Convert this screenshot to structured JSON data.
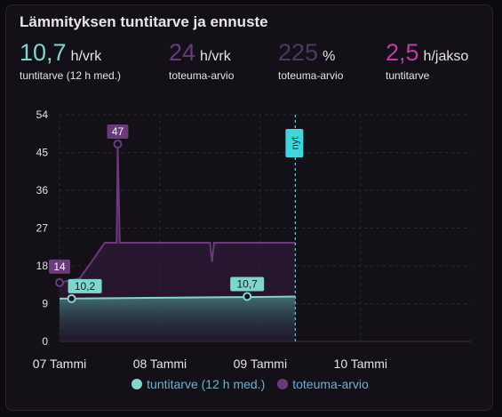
{
  "card": {
    "title": "Lämmityksen tuntitarve ja ennuste"
  },
  "stats": [
    {
      "value": "10,7",
      "unit": "h/vrk",
      "label": "tuntitarve (12 h med.)",
      "color": "#7fd6cc"
    },
    {
      "value": "24",
      "unit": "h/vrk",
      "label": "toteuma-arvio",
      "color": "#6a3a7a"
    },
    {
      "value": "225",
      "unit": "%",
      "label": "toteuma-arvio",
      "color": "#4a3a62"
    },
    {
      "value": "2,5",
      "unit": "h/jakso",
      "label": "tuntitarve",
      "color": "#c23aa8"
    }
  ],
  "chart_data": {
    "type": "line",
    "x_ticks": [
      "07 Tammi",
      "08 Tammi",
      "09 Tammi",
      "10 Tammi"
    ],
    "y_ticks": [
      "0",
      "9",
      "18",
      "27",
      "36",
      "45",
      "54"
    ],
    "ylim": [
      0,
      54
    ],
    "xlim_days": [
      0,
      4.1
    ],
    "now_label": "nyt",
    "now_x": 2.35,
    "series": [
      {
        "name": "tuntitarve (12 h med.)",
        "color": "#7fd6cc",
        "points": [
          [
            0,
            10.2
          ],
          [
            0.5,
            10.3
          ],
          [
            1.0,
            10.4
          ],
          [
            1.5,
            10.5
          ],
          [
            2.0,
            10.6
          ],
          [
            2.35,
            10.7
          ]
        ]
      },
      {
        "name": "toteuma-arvio",
        "color": "#6a3a7a",
        "points": [
          [
            0,
            14
          ],
          [
            0.2,
            15
          ],
          [
            0.35,
            20
          ],
          [
            0.45,
            23.5
          ],
          [
            0.57,
            23.5
          ],
          [
            0.58,
            47
          ],
          [
            0.6,
            23.5
          ],
          [
            1.5,
            23.5
          ],
          [
            1.52,
            19
          ],
          [
            1.54,
            23.5
          ],
          [
            2.35,
            23.5
          ]
        ]
      }
    ],
    "annotations": [
      {
        "label": "47",
        "x": 0.58,
        "y": 47,
        "color": "#6a3a7a",
        "text_color": "#ffffff"
      },
      {
        "label": "14",
        "x": 0.0,
        "y": 14,
        "color": "#6a3a7a",
        "text_color": "#ffffff"
      },
      {
        "label": "10,2",
        "x": 0.12,
        "y": 10.2,
        "color": "#7fd6cc",
        "text_color": "#102020"
      },
      {
        "label": "10,7",
        "x": 1.87,
        "y": 10.7,
        "color": "#7fd6cc",
        "text_color": "#102020"
      }
    ]
  },
  "legend": [
    {
      "label": "tuntitarve (12 h med.)",
      "color": "#7fd6cc"
    },
    {
      "label": "toteuma-arvio",
      "color": "#6a3a7a"
    }
  ]
}
